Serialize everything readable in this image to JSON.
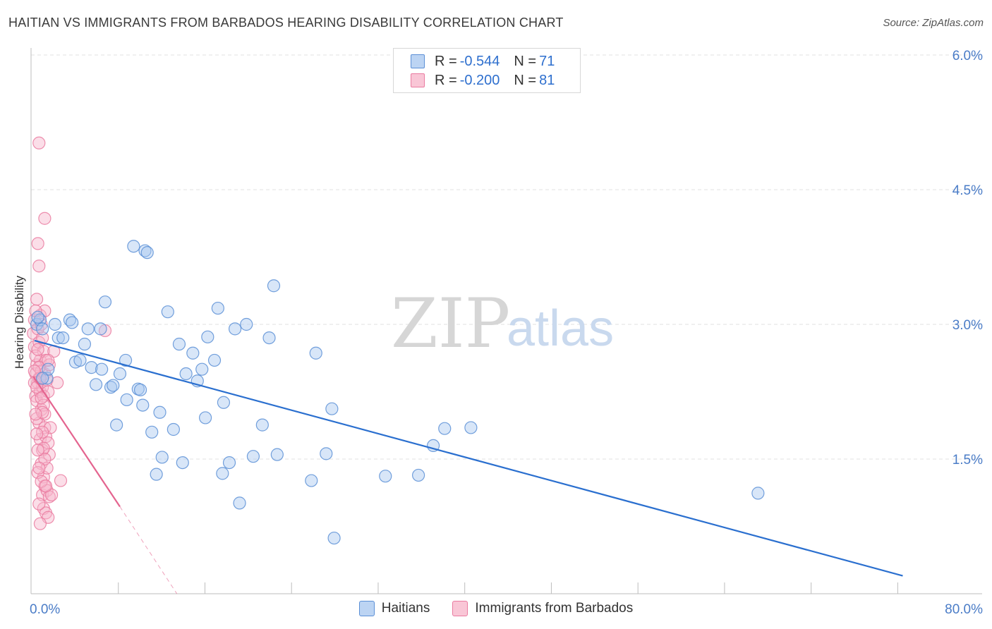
{
  "title": "HAITIAN VS IMMIGRANTS FROM BARBADOS HEARING DISABILITY CORRELATION CHART",
  "source": "Source: ZipAtlas.com",
  "watermark": {
    "zip": "ZIP",
    "atlas": "atlas"
  },
  "legend": {
    "r_label": "R =",
    "n_label": "N =",
    "series1": {
      "r": "-0.544",
      "n": "71"
    },
    "series2": {
      "r": "-0.200",
      "n": "81"
    }
  },
  "bottom_legend": {
    "series1": "Haitians",
    "series2": "Immigrants from Barbados"
  },
  "colors": {
    "blue_fill": "#a9c8ef",
    "blue_stroke": "#5b8fd6",
    "blue_line": "#2a6fcf",
    "pink_fill": "#f7b6cb",
    "pink_stroke": "#ea7ba0",
    "pink_line": "#e4648f",
    "grid": "#e2e2e2",
    "axis": "#bdbdbd"
  },
  "chart_data": {
    "type": "scatter",
    "title": "HAITIAN VS IMMIGRANTS FROM BARBADOS HEARING DISABILITY CORRELATION CHART",
    "xlabel": "",
    "ylabel": "Hearing Disability",
    "xlim": [
      0,
      80
    ],
    "ylim": [
      0,
      6.0
    ],
    "y_ticks": [
      1.5,
      3.0,
      4.5,
      6.0
    ],
    "y_tick_labels": [
      "1.5%",
      "3.0%",
      "4.5%",
      "6.0%"
    ],
    "x_tick_labels": [
      "0.0%",
      "80.0%"
    ],
    "x_tick_values": [
      0,
      80
    ],
    "x_minor_ticks": [
      7.6,
      15.2,
      22.8,
      30.4,
      38.0,
      45.6,
      53.2,
      60.8,
      68.4,
      76.0
    ],
    "grid": true,
    "series": [
      {
        "name": "Haitians",
        "r": -0.544,
        "n": 71,
        "trend": {
          "x": [
            0.3,
            76.5
          ],
          "y": [
            2.82,
            0.2
          ]
        },
        "points": [
          [
            0.5,
            3.0
          ],
          [
            0.8,
            3.05
          ],
          [
            1.0,
            2.95
          ],
          [
            1.4,
            2.4
          ],
          [
            1.5,
            2.5
          ],
          [
            2.1,
            3.0
          ],
          [
            2.4,
            2.85
          ],
          [
            2.8,
            2.85
          ],
          [
            3.4,
            3.05
          ],
          [
            3.6,
            3.02
          ],
          [
            3.9,
            2.58
          ],
          [
            4.3,
            2.6
          ],
          [
            4.7,
            2.78
          ],
          [
            5.0,
            2.95
          ],
          [
            5.3,
            2.52
          ],
          [
            5.7,
            2.33
          ],
          [
            6.1,
            2.95
          ],
          [
            6.2,
            2.5
          ],
          [
            6.5,
            3.25
          ],
          [
            7.0,
            2.3
          ],
          [
            7.2,
            2.32
          ],
          [
            7.5,
            1.88
          ],
          [
            7.8,
            2.45
          ],
          [
            8.3,
            2.6
          ],
          [
            8.4,
            2.16
          ],
          [
            9.0,
            3.87
          ],
          [
            9.4,
            2.28
          ],
          [
            9.6,
            2.27
          ],
          [
            9.8,
            2.1
          ],
          [
            10.0,
            3.82
          ],
          [
            10.2,
            3.8
          ],
          [
            10.6,
            1.8
          ],
          [
            11.0,
            1.33
          ],
          [
            11.3,
            2.02
          ],
          [
            11.5,
            1.52
          ],
          [
            12.0,
            3.14
          ],
          [
            12.5,
            1.83
          ],
          [
            13.0,
            2.78
          ],
          [
            13.3,
            1.46
          ],
          [
            13.6,
            2.45
          ],
          [
            14.2,
            2.68
          ],
          [
            14.6,
            2.37
          ],
          [
            15.0,
            2.5
          ],
          [
            15.3,
            1.96
          ],
          [
            15.5,
            2.86
          ],
          [
            16.1,
            2.6
          ],
          [
            16.4,
            3.18
          ],
          [
            16.8,
            1.34
          ],
          [
            16.9,
            2.13
          ],
          [
            17.4,
            1.46
          ],
          [
            17.9,
            2.95
          ],
          [
            18.3,
            1.01
          ],
          [
            18.9,
            3.0
          ],
          [
            19.5,
            1.53
          ],
          [
            20.3,
            1.88
          ],
          [
            20.9,
            2.85
          ],
          [
            21.3,
            3.43
          ],
          [
            21.6,
            1.55
          ],
          [
            24.6,
            1.26
          ],
          [
            25.0,
            2.68
          ],
          [
            25.9,
            1.56
          ],
          [
            26.4,
            2.06
          ],
          [
            26.6,
            0.62
          ],
          [
            31.1,
            1.31
          ],
          [
            34.0,
            1.32
          ],
          [
            35.3,
            1.65
          ],
          [
            36.3,
            1.84
          ],
          [
            38.6,
            1.85
          ],
          [
            63.8,
            1.12
          ],
          [
            1.0,
            2.4
          ],
          [
            0.6,
            3.08
          ]
        ]
      },
      {
        "name": "Immigrants from Barbados",
        "r": -0.2,
        "n": 81,
        "trend": {
          "x": [
            0.2,
            7.8
          ],
          "y": [
            2.42,
            0.97
          ]
        },
        "trend_dashed": {
          "x": [
            7.8,
            12.8
          ],
          "y": [
            0.97,
            0.0
          ]
        },
        "points": [
          [
            0.2,
            2.9
          ],
          [
            0.3,
            3.05
          ],
          [
            0.3,
            2.75
          ],
          [
            0.4,
            2.45
          ],
          [
            0.4,
            2.2
          ],
          [
            0.5,
            3.28
          ],
          [
            0.5,
            2.55
          ],
          [
            0.5,
            2.15
          ],
          [
            0.6,
            3.9
          ],
          [
            0.6,
            2.95
          ],
          [
            0.6,
            2.35
          ],
          [
            0.7,
            5.02
          ],
          [
            0.7,
            3.65
          ],
          [
            0.7,
            2.8
          ],
          [
            0.7,
            2.4
          ],
          [
            0.7,
            1.9
          ],
          [
            0.8,
            3.1
          ],
          [
            0.8,
            2.6
          ],
          [
            0.8,
            2.25
          ],
          [
            0.8,
            1.72
          ],
          [
            0.9,
            3.0
          ],
          [
            0.9,
            2.48
          ],
          [
            0.9,
            2.05
          ],
          [
            0.9,
            1.45
          ],
          [
            1.0,
            2.85
          ],
          [
            1.0,
            2.3
          ],
          [
            1.0,
            1.6
          ],
          [
            1.0,
            1.1
          ],
          [
            1.1,
            2.7
          ],
          [
            1.1,
            2.2
          ],
          [
            1.1,
            1.3
          ],
          [
            1.1,
            0.95
          ],
          [
            1.2,
            3.15
          ],
          [
            1.2,
            2.45
          ],
          [
            1.2,
            1.85
          ],
          [
            1.2,
            1.2
          ],
          [
            1.3,
            2.6
          ],
          [
            1.3,
            1.75
          ],
          [
            1.3,
            0.9
          ],
          [
            1.4,
            2.38
          ],
          [
            1.4,
            1.4
          ],
          [
            1.4,
            1.15
          ],
          [
            1.5,
            2.25
          ],
          [
            1.5,
            1.68
          ],
          [
            1.5,
            0.85
          ],
          [
            1.6,
            2.55
          ],
          [
            1.6,
            1.55
          ],
          [
            1.6,
            1.08
          ],
          [
            1.7,
            1.85
          ],
          [
            1.8,
            1.1
          ],
          [
            2.0,
            2.7
          ],
          [
            2.3,
            2.35
          ],
          [
            2.6,
            1.26
          ],
          [
            1.2,
            4.18
          ],
          [
            0.3,
            2.35
          ],
          [
            0.4,
            2.65
          ],
          [
            0.5,
            1.95
          ],
          [
            0.6,
            1.35
          ],
          [
            0.7,
            1.0
          ],
          [
            0.8,
            0.78
          ],
          [
            0.9,
            1.25
          ],
          [
            1.0,
            1.8
          ],
          [
            1.1,
            2.1
          ],
          [
            1.2,
            2.0
          ],
          [
            1.3,
            1.2
          ],
          [
            0.4,
            3.15
          ],
          [
            0.5,
            2.3
          ],
          [
            0.6,
            2.72
          ],
          [
            0.7,
            2.52
          ],
          [
            0.8,
            2.4
          ],
          [
            0.9,
            2.18
          ],
          [
            1.0,
            2.02
          ],
          [
            1.1,
            1.62
          ],
          [
            1.2,
            1.5
          ],
          [
            0.3,
            2.48
          ],
          [
            0.4,
            2.0
          ],
          [
            0.5,
            1.78
          ],
          [
            0.6,
            1.6
          ],
          [
            0.7,
            1.4
          ],
          [
            6.5,
            2.93
          ],
          [
            1.5,
            2.6
          ]
        ]
      }
    ]
  }
}
